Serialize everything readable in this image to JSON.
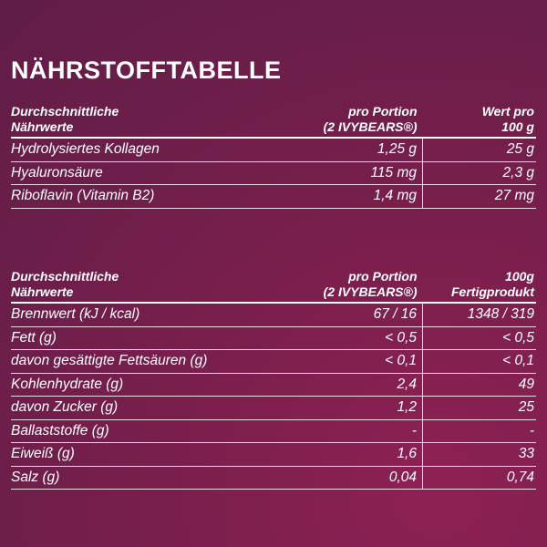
{
  "title": "NÄHRSTOFFTABELLE",
  "tables": [
    {
      "header": [
        [
          "Durchschnittliche",
          "Nährwerte"
        ],
        [
          "pro Portion",
          "(2 IVYBEARS®)"
        ],
        [
          "Wert pro",
          "100 g"
        ]
      ],
      "rows": [
        [
          "Hydrolysiertes Kollagen",
          "1,25 g",
          "25 g"
        ],
        [
          "Hyaluronsäure",
          "115 mg",
          "2,3 g"
        ],
        [
          "Riboflavin (Vitamin B2)",
          "1,4 mg",
          "27 mg"
        ]
      ]
    },
    {
      "header": [
        [
          "Durchschnittliche",
          "Nährwerte"
        ],
        [
          "pro Portion",
          "(2 IVYBEARS®)"
        ],
        [
          "100g",
          "Fertigprodukt"
        ]
      ],
      "rows": [
        [
          "Brennwert  (kJ / kcal)",
          "67 / 16",
          "1348 / 319"
        ],
        [
          "Fett (g)",
          "< 0,5",
          "< 0,5"
        ],
        [
          "davon gesättigte Fettsäuren (g)",
          "< 0,1",
          "< 0,1"
        ],
        [
          "Kohlenhydrate (g)",
          "2,4",
          "49"
        ],
        [
          "davon Zucker (g)",
          "1,2",
          "25"
        ],
        [
          "Ballaststoffe (g)",
          "-",
          "-"
        ],
        [
          "Eiweiß (g)",
          "1,6",
          "33"
        ],
        [
          "Salz (g)",
          "0,04",
          "0,74"
        ]
      ]
    }
  ]
}
